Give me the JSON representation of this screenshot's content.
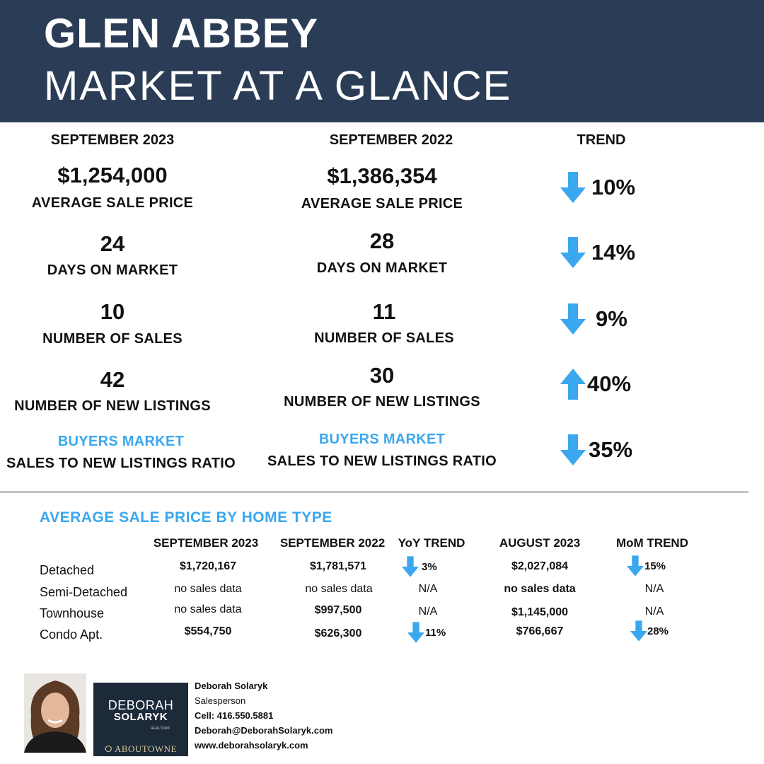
{
  "header": {
    "title_line1": "GLEN ABBEY",
    "title_line2": "MARKET AT A GLANCE"
  },
  "columns": {
    "current": "SEPTEMBER 2023",
    "previous": "SEPTEMBER 2022",
    "trend": "TREND"
  },
  "metrics": [
    {
      "current": "$1,254,000",
      "previous": "$1,386,354",
      "label": "AVERAGE SALE PRICE",
      "trend_dir": "down",
      "trend_pct": "10%"
    },
    {
      "current": "24",
      "previous": "28",
      "label": "DAYS ON MARKET",
      "trend_dir": "down",
      "trend_pct": "14%"
    },
    {
      "current": "10",
      "previous": "11",
      "label": "NUMBER OF SALES",
      "trend_dir": "down",
      "trend_pct": "9%"
    },
    {
      "current": "42",
      "previous": "30",
      "label": "NUMBER OF NEW LISTINGS",
      "trend_dir": "up",
      "trend_pct": "40%"
    },
    {
      "current": "BUYERS MARKET",
      "previous": "BUYERS MARKET",
      "label": "SALES TO NEW LISTINGS RATIO",
      "trend_dir": "down",
      "trend_pct": "35%"
    }
  ],
  "home_type": {
    "title": "AVERAGE SALE PRICE BY HOME TYPE",
    "headers": [
      "SEPTEMBER 2023",
      "SEPTEMBER 2022",
      "YoY TREND",
      "AUGUST 2023",
      "MoM TREND"
    ],
    "rows": [
      {
        "type": "Detached",
        "sep23": "$1,720,167",
        "sep22": "$1,781,571",
        "yoy": "3%",
        "aug23": "$2,027,084",
        "mom": "15%"
      },
      {
        "type": "Semi-Detached",
        "sep23": "no sales data",
        "sep22": "no sales data",
        "yoy": "N/A",
        "aug23": "no sales data",
        "mom": "N/A"
      },
      {
        "type": "Townhouse",
        "sep23": "no sales data",
        "sep22": "$997,500",
        "yoy": "N/A",
        "aug23": "$1,145,000",
        "mom": "N/A"
      },
      {
        "type": "Condo Apt.",
        "sep23": "$554,750",
        "sep22": "$626,300",
        "yoy": "11%",
        "aug23": "$766,667",
        "mom": "28%"
      }
    ]
  },
  "agent": {
    "name": "Deborah Solaryk",
    "role": "Salesperson",
    "cell": "Cell:  416.550.5881",
    "email": "Deborah@DeborahSolaryk.com",
    "website": "www.deborahsolaryk.com",
    "logo_line1": "DEBORAH",
    "logo_line2": "SOLARYK",
    "logo_line3": "REALTOR®",
    "brokerage": "ABOUTOWNE"
  },
  "colors": {
    "header_bg": "#2b3d56",
    "accent_blue": "#3aa7ef"
  }
}
